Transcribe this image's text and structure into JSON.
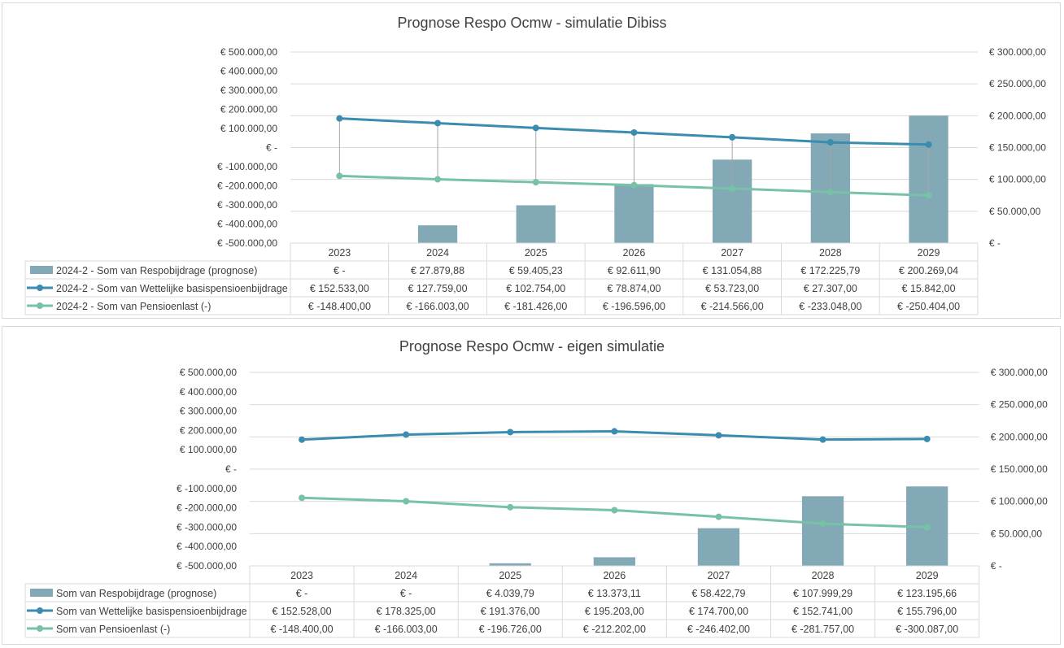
{
  "colors": {
    "bar": "#82a9b5",
    "line_basis": "#3a8cb0",
    "line_pension": "#77c2a6",
    "drop_line": "#a6a6a6",
    "grid": "#d9d9d9",
    "text": "#404040"
  },
  "chart_data": [
    {
      "type": "bar",
      "title": "Prognose Respo Ocmw - simulatie Dibiss",
      "categories": [
        "2023",
        "2024",
        "2025",
        "2026",
        "2027",
        "2028",
        "2029"
      ],
      "left_axis": {
        "ylim": [
          -500000,
          500000
        ],
        "ticks": [
          "€ 500.000,00",
          "€ 400.000,00",
          "€ 300.000,00",
          "€ 200.000,00",
          "€ 100.000,00",
          "€ -",
          "€ -100.000,00",
          "€ -200.000,00",
          "€ -300.000,00",
          "€ -400.000,00",
          "€ -500.000,00"
        ]
      },
      "right_axis": {
        "ylim": [
          0,
          300000
        ],
        "ticks": [
          "€ 300.000,00",
          "€ 250.000,00",
          "€ 200.000,00",
          "€ 150.000,00",
          "€ 100.000,00",
          "€ 50.000,00",
          "€ -"
        ]
      },
      "grid": true,
      "drop_lines": true,
      "legend": "data-table",
      "series": [
        {
          "name": "2024-2 - Som van Respobijdrage (prognose)",
          "type": "bar",
          "axis": "right",
          "values": [
            0,
            27879.88,
            59405.23,
            92611.9,
            131054.88,
            172225.79,
            200269.04
          ],
          "labels": [
            "€ -",
            "€ 27.879,88",
            "€ 59.405,23",
            "€ 92.611,90",
            "€ 131.054,88",
            "€ 172.225,79",
            "€ 200.269,04"
          ]
        },
        {
          "name": "2024-2 - Som van Wettelijke basispensioenbijdrage",
          "type": "line",
          "axis": "left",
          "values": [
            152533,
            127759,
            102754,
            78874,
            53723,
            27307,
            15842
          ],
          "labels": [
            "€ 152.533,00",
            "€ 127.759,00",
            "€ 102.754,00",
            "€ 78.874,00",
            "€ 53.723,00",
            "€ 27.307,00",
            "€ 15.842,00"
          ]
        },
        {
          "name": "2024-2 - Som van Pensioenlast (-)",
          "type": "line",
          "axis": "left",
          "values": [
            -148400,
            -166003,
            -181426,
            -196596,
            -214566,
            -233048,
            -250404
          ],
          "labels": [
            "€ -148.400,00",
            "€ -166.003,00",
            "€ -181.426,00",
            "€ -196.596,00",
            "€ -214.566,00",
            "€ -233.048,00",
            "€ -250.404,00"
          ]
        }
      ]
    },
    {
      "type": "bar",
      "title": "Prognose Respo Ocmw - eigen simulatie",
      "categories": [
        "2023",
        "2024",
        "2025",
        "2026",
        "2027",
        "2028",
        "2029"
      ],
      "left_axis": {
        "ylim": [
          -500000,
          500000
        ],
        "ticks": [
          "€ 500.000,00",
          "€ 400.000,00",
          "€ 300.000,00",
          "€ 200.000,00",
          "€ 100.000,00",
          "€ -",
          "€ -100.000,00",
          "€ -200.000,00",
          "€ -300.000,00",
          "€ -400.000,00",
          "€ -500.000,00"
        ]
      },
      "right_axis": {
        "ylim": [
          0,
          300000
        ],
        "ticks": [
          "€ 300.000,00",
          "€ 250.000,00",
          "€ 200.000,00",
          "€ 150.000,00",
          "€ 100.000,00",
          "€ 50.000,00",
          "€ -"
        ]
      },
      "grid": true,
      "drop_lines": false,
      "legend": "data-table",
      "series": [
        {
          "name": "Som van Respobijdrage (prognose)",
          "type": "bar",
          "axis": "right",
          "values": [
            0,
            0,
            4039.79,
            13373.11,
            58422.79,
            107999.29,
            123195.66
          ],
          "labels": [
            "€ -",
            "€ -",
            "€ 4.039,79",
            "€ 13.373,11",
            "€ 58.422,79",
            "€ 107.999,29",
            "€ 123.195,66"
          ]
        },
        {
          "name": "Som van Wettelijke basispensioenbijdrage",
          "type": "line",
          "axis": "left",
          "values": [
            152528,
            178325,
            191376,
            195203,
            174700,
            152741,
            155796
          ],
          "labels": [
            "€ 152.528,00",
            "€ 178.325,00",
            "€ 191.376,00",
            "€ 195.203,00",
            "€ 174.700,00",
            "€ 152.741,00",
            "€ 155.796,00"
          ]
        },
        {
          "name": "Som van Pensioenlast (-)",
          "type": "line",
          "axis": "left",
          "values": [
            -148400,
            -166003,
            -196726,
            -212202,
            -246402,
            -281757,
            -300087
          ],
          "labels": [
            "€ -148.400,00",
            "€ -166.003,00",
            "€ -196.726,00",
            "€ -212.202,00",
            "€ -246.402,00",
            "€ -281.757,00",
            "€ -300.087,00"
          ]
        }
      ]
    }
  ]
}
